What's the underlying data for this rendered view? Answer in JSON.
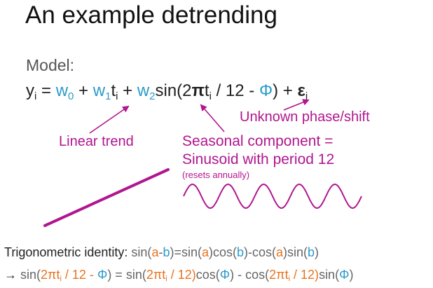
{
  "title": "An example detrending",
  "model": {
    "label": "Model:",
    "y": "y",
    "i": "i",
    "eq": " = ",
    "w": "w",
    "zero": "0",
    "one": "1",
    "two": "2",
    "plus": " + ",
    "t": "t",
    "sin_open": "sin(2",
    "pi": "π",
    "div12": " / 12  -  ",
    "phi": "Φ",
    "close_plus": ") + ",
    "eps": "ε"
  },
  "annotations": {
    "phase": "Unknown phase/shift",
    "linear": "Linear trend",
    "seasonal_line1": "Seasonal component =",
    "seasonal_line2": "Sinusoid with period 12",
    "seasonal_note": "(resets annually)"
  },
  "trig": {
    "label": "Trigonometric identity:",
    "sin": "sin(",
    "a": "a",
    "minus": "-",
    "b": "b",
    "eq_sin": ")=sin(",
    "cos": ")cos(",
    "minus_cos": ")-cos(",
    "sin2": ")sin(",
    "close": ")"
  },
  "trig2": {
    "arrow": "→",
    "sin_open": " sin(",
    "two_pi": "2πt",
    "i": "i",
    "div": " / 12  -  ",
    "phi": "Φ",
    "eq_sin": ") = sin(",
    "div12": " / 12)",
    "cos": "cos(",
    "minus_cos": ") - cos(",
    "sin": "sin(",
    "close": ")"
  },
  "colors": {
    "accent_blue": "#2b9bc9",
    "accent_magenta": "#b0168f",
    "accent_orange": "#e8731e"
  }
}
